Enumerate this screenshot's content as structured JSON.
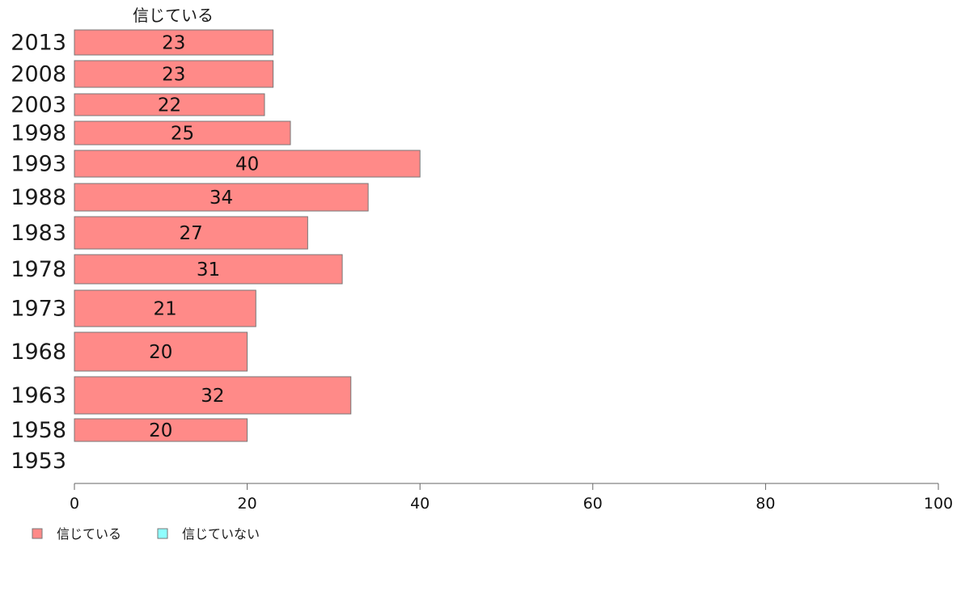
{
  "chart_data": {
    "type": "bar",
    "orientation": "horizontal",
    "series_header": "信じている",
    "categories": [
      "2013",
      "2008",
      "2003",
      "1998",
      "1993",
      "1988",
      "1983",
      "1978",
      "1973",
      "1968",
      "1963",
      "1958",
      "1953"
    ],
    "series": [
      {
        "name": "信じている",
        "color": "#ff8a88",
        "values": [
          23,
          23,
          22,
          25,
          40,
          34,
          27,
          31,
          21,
          20,
          32,
          20,
          null
        ]
      },
      {
        "name": "信じていない",
        "color": "#8fffff",
        "values": [
          null,
          null,
          null,
          null,
          null,
          null,
          null,
          null,
          null,
          null,
          null,
          null,
          null
        ]
      }
    ],
    "xlim": [
      0,
      100
    ],
    "xticks": [
      "0",
      "20",
      "40",
      "60",
      "80",
      "100"
    ],
    "legend_position": "bottom-left",
    "grid": false
  }
}
